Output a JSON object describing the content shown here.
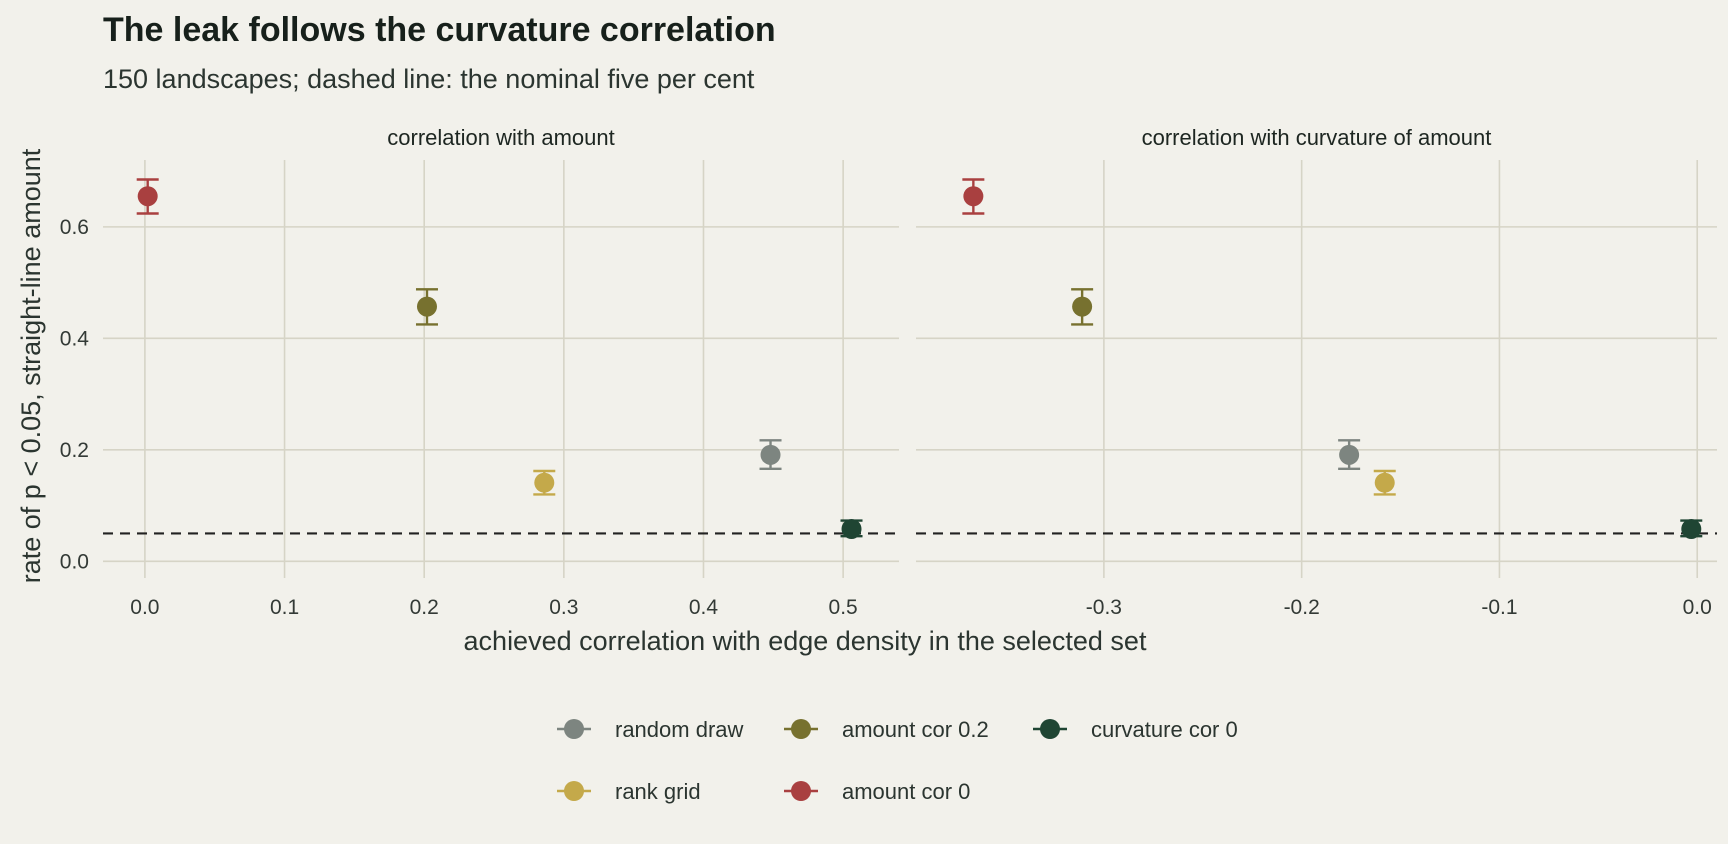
{
  "title": "The leak follows the curvature correlation",
  "subtitle": "150 landscapes; dashed line: the nominal five per cent",
  "colors": {
    "background": "#f2f1eb",
    "grid": "#d6d4c6",
    "reference_line": "#222222",
    "random draw": "#7d8580",
    "rank grid": "#c4a94a",
    "amount cor 0.2": "#77712f",
    "amount cor 0": "#a94040",
    "curvature cor 0": "#1f4533"
  },
  "chart_data": {
    "type": "scatter",
    "title": "The leak follows the curvature correlation",
    "subtitle": "150 landscapes; dashed line: the nominal five per cent",
    "xlabel": "achieved correlation with edge density in the selected set",
    "ylabel": "rate of p < 0.05, straight-line amount",
    "reference_line": {
      "y": 0.05,
      "style": "dashed"
    },
    "ylim": [
      -0.03,
      0.72
    ],
    "yticks": [
      0.0,
      0.2,
      0.4,
      0.6
    ],
    "ytick_labels": [
      "0.0",
      "0.2",
      "0.4",
      "0.6"
    ],
    "grid": true,
    "legend": {
      "position": "bottom",
      "rows": [
        [
          "random draw",
          "amount cor 0.2",
          "curvature cor 0"
        ],
        [
          "rank grid",
          "amount cor 0"
        ]
      ]
    },
    "panels": [
      {
        "strip": "correlation with amount",
        "xlim": [
          -0.03,
          0.54
        ],
        "xticks": [
          0.0,
          0.1,
          0.2,
          0.3,
          0.4,
          0.5
        ],
        "xtick_labels": [
          "0.0",
          "0.1",
          "0.2",
          "0.3",
          "0.4",
          "0.5"
        ],
        "points": [
          {
            "series": "amount cor 0",
            "x": 0.002,
            "y": 0.655,
            "ylo": 0.624,
            "yhi": 0.685
          },
          {
            "series": "amount cor 0.2",
            "x": 0.202,
            "y": 0.457,
            "ylo": 0.425,
            "yhi": 0.488
          },
          {
            "series": "rank grid",
            "x": 0.286,
            "y": 0.141,
            "ylo": 0.12,
            "yhi": 0.162
          },
          {
            "series": "random draw",
            "x": 0.448,
            "y": 0.191,
            "ylo": 0.166,
            "yhi": 0.217
          },
          {
            "series": "curvature cor 0",
            "x": 0.506,
            "y": 0.058,
            "ylo": 0.045,
            "yhi": 0.073
          }
        ]
      },
      {
        "strip": "correlation with curvature of amount",
        "xlim": [
          -0.395,
          0.01
        ],
        "xticks": [
          -0.3,
          -0.2,
          -0.1,
          0.0
        ],
        "xtick_labels": [
          "-0.3",
          "-0.2",
          "-0.1",
          "0.0"
        ],
        "points": [
          {
            "series": "amount cor 0",
            "x": -0.366,
            "y": 0.655,
            "ylo": 0.624,
            "yhi": 0.685
          },
          {
            "series": "amount cor 0.2",
            "x": -0.311,
            "y": 0.457,
            "ylo": 0.425,
            "yhi": 0.488
          },
          {
            "series": "random draw",
            "x": -0.176,
            "y": 0.191,
            "ylo": 0.166,
            "yhi": 0.217
          },
          {
            "series": "rank grid",
            "x": -0.158,
            "y": 0.141,
            "ylo": 0.12,
            "yhi": 0.162
          },
          {
            "series": "curvature cor 0",
            "x": -0.003,
            "y": 0.058,
            "ylo": 0.045,
            "yhi": 0.073
          }
        ]
      }
    ]
  }
}
